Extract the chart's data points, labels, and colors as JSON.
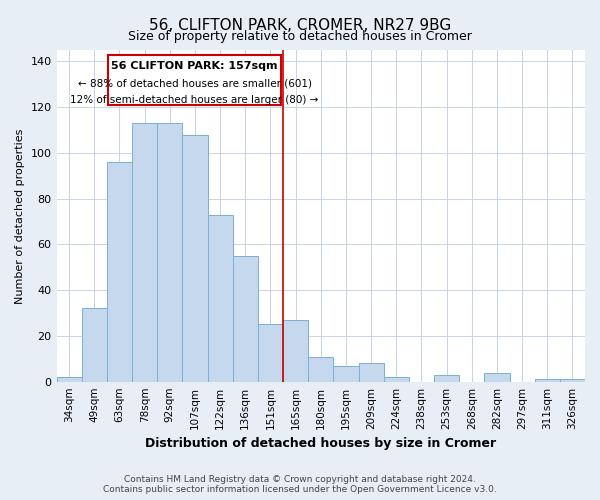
{
  "title": "56, CLIFTON PARK, CROMER, NR27 9BG",
  "subtitle": "Size of property relative to detached houses in Cromer",
  "xlabel": "Distribution of detached houses by size in Cromer",
  "ylabel": "Number of detached properties",
  "categories": [
    "34sqm",
    "49sqm",
    "63sqm",
    "78sqm",
    "92sqm",
    "107sqm",
    "122sqm",
    "136sqm",
    "151sqm",
    "165sqm",
    "180sqm",
    "195sqm",
    "209sqm",
    "224sqm",
    "238sqm",
    "253sqm",
    "268sqm",
    "282sqm",
    "297sqm",
    "311sqm",
    "326sqm"
  ],
  "values": [
    2,
    32,
    96,
    113,
    113,
    108,
    73,
    55,
    25,
    27,
    11,
    7,
    8,
    2,
    0,
    3,
    0,
    4,
    0,
    1,
    1
  ],
  "bar_color": "#c5d8ed",
  "bar_edge_color": "#7ab0d4",
  "vline_x_index": 8.5,
  "annotation_text_line1": "56 CLIFTON PARK: 157sqm",
  "annotation_text_line2": "← 88% of detached houses are smaller (601)",
  "annotation_text_line3": "12% of semi-detached houses are larger (80) →",
  "vline_color": "#cc0000",
  "annotation_box_edgecolor": "#cc0000",
  "footer_line1": "Contains HM Land Registry data © Crown copyright and database right 2024.",
  "footer_line2": "Contains public sector information licensed under the Open Government Licence v3.0.",
  "ylim": [
    0,
    145
  ],
  "yticks": [
    0,
    20,
    40,
    60,
    80,
    100,
    120,
    140
  ],
  "background_color": "#e8eef6",
  "plot_background_color": "#ffffff",
  "grid_color": "#c8d4e4"
}
